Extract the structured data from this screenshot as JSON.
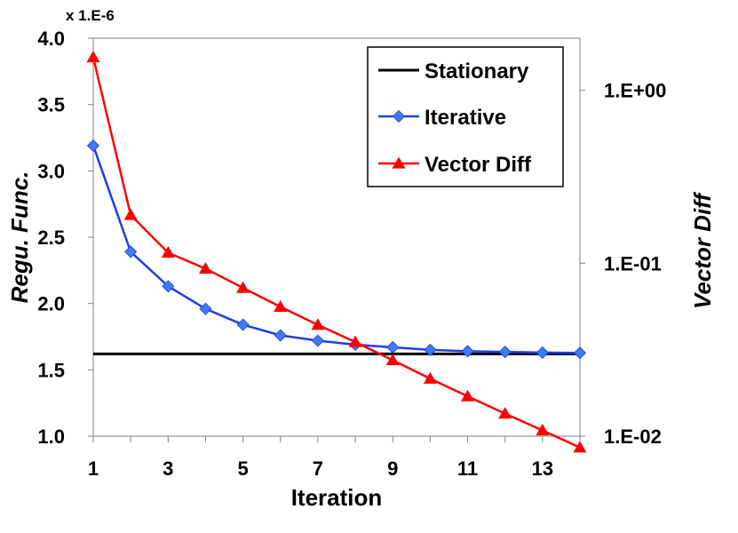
{
  "chart_data": {
    "type": "line",
    "title": "",
    "xlabel": "Iteration",
    "ylabel": "Regu. Func.",
    "y2label": "Vector Diff",
    "y_multiplier_label": "x 1.E-6",
    "grid": false,
    "legend_position": "top-right",
    "x": [
      1,
      2,
      3,
      4,
      5,
      6,
      7,
      8,
      9,
      10,
      11,
      12,
      13,
      14
    ],
    "xlim": [
      1,
      14
    ],
    "x_ticks": [
      1,
      3,
      5,
      7,
      9,
      11,
      13
    ],
    "x_tick_labels": [
      "1",
      "3",
      "5",
      "7",
      "9",
      "11",
      "13"
    ],
    "ylim": [
      1.0,
      4.0
    ],
    "y_ticks": [
      1.0,
      1.5,
      2.0,
      2.5,
      3.0,
      3.5,
      4.0
    ],
    "y_tick_labels": [
      "1.0",
      "1.5",
      "2.0",
      "2.5",
      "3.0",
      "3.5",
      "4.0"
    ],
    "y2_scale": "log",
    "y2lim": [
      0.01,
      2.0
    ],
    "y2_ticks": [
      0.01,
      0.1,
      1.0
    ],
    "y2_tick_labels": [
      "1.E-02",
      "1.E-01",
      "1.E+00"
    ],
    "series": [
      {
        "name": "Stationary",
        "axis": "left",
        "color": "#000000",
        "marker": "none",
        "values": [
          1.62,
          1.62,
          1.62,
          1.62,
          1.62,
          1.62,
          1.62,
          1.62,
          1.62,
          1.62,
          1.62,
          1.62,
          1.62,
          1.62
        ]
      },
      {
        "name": "Iterative",
        "axis": "left",
        "color": "#1f3de6",
        "marker_color": "#3d7bf2",
        "marker": "diamond",
        "values": [
          3.19,
          2.39,
          2.13,
          1.96,
          1.84,
          1.76,
          1.72,
          1.69,
          1.67,
          1.65,
          1.64,
          1.635,
          1.63,
          1.628
        ]
      },
      {
        "name": "Vector Diff",
        "axis": "right",
        "color": "#ff0000",
        "marker": "triangle",
        "values": [
          1.55,
          0.19,
          0.115,
          0.093,
          0.072,
          0.056,
          0.044,
          0.035,
          0.0275,
          0.0215,
          0.017,
          0.0135,
          0.0108,
          0.0086
        ]
      }
    ]
  }
}
